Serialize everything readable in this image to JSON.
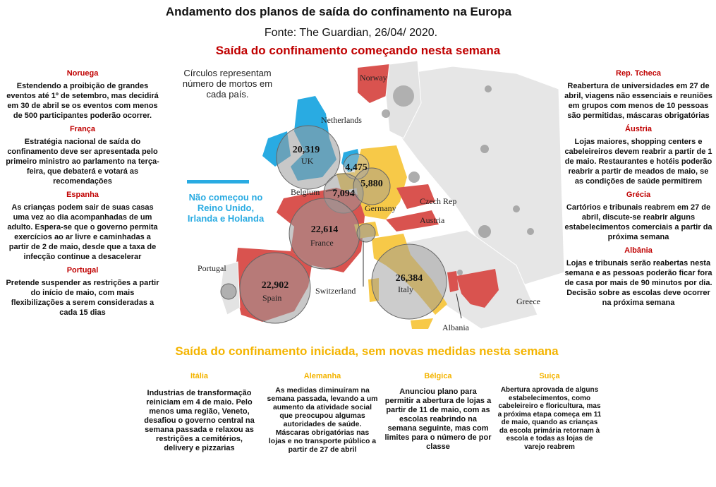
{
  "title": "Andamento dos planos de saída do confinamento na Europa",
  "source": "Fonte: The Guardian, 26/04/ 2020.",
  "section_red": "Saída do confinamento começando nesta semana",
  "section_yellow": "Saída do confinamento iniciada, sem novas medidas nesta semana",
  "legend_note": "Círculos representam número de mortos em cada país.",
  "not_started_note": "Não começou no Reino Unido, Irlanda e Holanda",
  "left_column": [
    {
      "country": "Noruega",
      "text": "Estendendo a proibição de grandes eventos até 1º de setembro, mas decidirá em 30 de abril se os eventos com menos de 500 participantes poderão ocorrer."
    },
    {
      "country": "França",
      "text": "Estratégia nacional de saída do confinamento deve ser apresentada pelo primeiro ministro ao parlamento na terça-feira, que debaterá e votará as recomendações"
    },
    {
      "country": "Espanha",
      "text": "As crianças podem sair de suas casas uma vez ao dia acompanhadas de um adulto. Espera-se que o governo permita exercícios ao ar livre e caminhadas a partir de 2 de maio, desde que a taxa de infecção continue a desacelerar"
    },
    {
      "country": "Portugal",
      "text": "Pretende suspender as restrições a partir do início de maio, com mais flexibilizações a serem consideradas a cada 15 dias"
    }
  ],
  "right_column": [
    {
      "country": "Rep. Tcheca",
      "text": "Reabertura de universidades em 27 de abril, viagens não essenciais e reuniões em grupos com menos de 10 pessoas são permitidas, máscaras obrigatórias"
    },
    {
      "country": "Áustria",
      "text": "Lojas maiores, shopping centers e cabeleireiros devem reabrir a partir de 1 de maio. Restaurantes e hotéis poderão reabrir a partir de meados de maio, se as condições de saúde permitirem"
    },
    {
      "country": "Grécia",
      "text": "Cartórios e tribunais reabrem em 27 de abril, discute-se reabrir alguns estabelecimentos comerciais a partir da próxima semana"
    },
    {
      "country": "Albânia",
      "text": "Lojas e tribunais serão reabertas nesta semana e as pessoas poderão ficar fora de casa por mais de 90 minutos por dia. Decisão sobre as escolas deve ocorrer na próxima semana"
    }
  ],
  "bottom_columns": [
    {
      "country": "Itália",
      "text": "Industrias de transformação reiniciam em 4 de maio. Pelo menos uma região, Veneto, desafiou o governo central na semana passada e relaxou as restrições a cemitérios, delivery e pizzarias"
    },
    {
      "country": "Alemanha",
      "text": "As medidas diminuíram na semana passada, levando a um aumento da atividade social que preocupou algumas autoridades de saúde. Máscaras obrigatórias nas lojas e no transporte público a partir de 27 de abril"
    },
    {
      "country": "Bélgica",
      "text": "Anunciou plano para permitir a abertura de lojas a partir de 11 de maio, com as escolas reabrindo na semana seguinte, mas com limites para o número de por classe"
    },
    {
      "country": "Suiça",
      "text": "Abertura aprovada de alguns estabelecimentos, como cabeleireiro e floricultura, mas a próxima etapa começa em 11 de maio, quando as crianças da escola primária retornam à escola e todas as lojas de varejo reabrem"
    }
  ],
  "map": {
    "colors": {
      "red": "#d9534f",
      "yellow": "#f7c948",
      "blue": "#29abe2",
      "grey": "#e4e4e4",
      "bubble": "#9a9a9a"
    },
    "country_labels": [
      "Norway",
      "Netherlands",
      "Belgium",
      "Czech Rep",
      "Austria",
      "Germany",
      "France",
      "Switzerland",
      "Portugal",
      "Spain",
      "Italy",
      "Albania",
      "Greece",
      "UK"
    ],
    "deaths": [
      {
        "country": "UK",
        "value": "20,319"
      },
      {
        "country": "Netherlands",
        "value": "4,475"
      },
      {
        "country": "Belgium",
        "value": "7,094"
      },
      {
        "country": "Germany",
        "value": "5,880"
      },
      {
        "country": "France",
        "value": "22,614"
      },
      {
        "country": "Spain",
        "value": "22,902"
      },
      {
        "country": "Italy",
        "value": "26,384"
      }
    ]
  }
}
